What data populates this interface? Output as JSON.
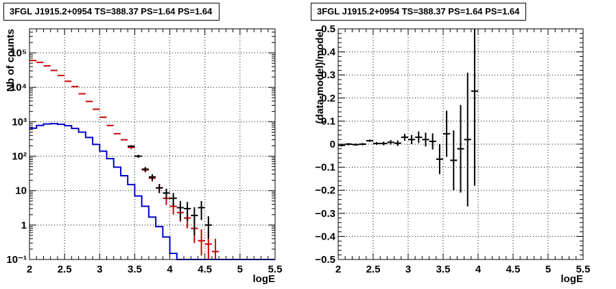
{
  "chart_data": [
    {
      "type": "line",
      "title": "3FGL J1915.2+0954 TS=388.37 PS=1.64 PS=1.64",
      "xlabel": "logE",
      "ylabel": "Nb of counts",
      "xlim": [
        2,
        5.5
      ],
      "ylim": [
        0.1,
        500000
      ],
      "y_scale": "log",
      "grid": true,
      "x_ticks": [
        "2",
        "2.5",
        "3",
        "3.5",
        "4",
        "4.5",
        "5",
        "5.5"
      ],
      "y_ticks": [
        {
          "label": "10⁻¹",
          "value": 0.1
        },
        {
          "label": "1",
          "value": 1
        },
        {
          "label": "10",
          "value": 10
        },
        {
          "label": "10²",
          "value": 100
        },
        {
          "label": "10³",
          "value": 1000
        },
        {
          "label": "10⁴",
          "value": 10000
        },
        {
          "label": "10⁵",
          "value": 100000
        }
      ],
      "bin_width": 0.1,
      "series": [
        {
          "color": "#cc0000",
          "style": "points",
          "x": [
            2.05,
            2.15,
            2.25,
            2.35,
            2.45,
            2.55,
            2.65,
            2.75,
            2.85,
            2.95,
            3.05,
            3.15,
            3.25,
            3.35,
            3.45,
            3.55,
            3.65,
            3.75,
            3.85,
            3.95,
            4.05,
            4.15,
            4.25,
            4.35,
            4.45,
            4.55,
            4.65
          ],
          "y": [
            60000,
            53000,
            42000,
            31000,
            22000,
            15000,
            10500,
            6500,
            3900,
            2300,
            1350,
            780,
            450,
            300,
            180,
            100,
            40,
            23,
            12,
            6,
            3.5,
            2.3,
            1.6,
            0.8,
            0.35,
            0.28,
            0.17
          ],
          "y_err_low": [
            0,
            0,
            0,
            0,
            0,
            0,
            0,
            0,
            0,
            0,
            0,
            0,
            0,
            0,
            20,
            10,
            6,
            4.5,
            3.5,
            2.2,
            1.5,
            1.05,
            0.8,
            0.5,
            0.22,
            0.18,
            0.07
          ],
          "y_err_high": [
            0,
            0,
            0,
            0,
            0,
            0,
            0,
            0,
            0,
            0,
            0,
            0,
            0,
            0,
            20,
            10,
            6,
            4.5,
            3.5,
            2.8,
            2.2,
            1.5,
            1.2,
            0.8,
            0.4,
            0.45,
            0.23
          ]
        },
        {
          "color": "#0000cc",
          "style": "step",
          "bin_low": [
            2.0,
            2.1,
            2.2,
            2.3,
            2.4,
            2.5,
            2.6,
            2.7,
            2.8,
            2.9,
            3.0,
            3.1,
            3.2,
            3.3,
            3.4,
            3.5,
            3.6,
            3.7,
            3.8,
            3.9,
            4.0,
            4.1,
            4.2,
            4.3,
            4.4,
            4.5,
            4.6,
            4.7,
            4.8,
            4.9,
            5.0,
            5.1,
            5.2,
            5.3,
            5.4
          ],
          "values": [
            650,
            780,
            860,
            880,
            840,
            770,
            640,
            500,
            350,
            220,
            140,
            85,
            48,
            27,
            15,
            7,
            3.5,
            1.7,
            0.9,
            0.45,
            0.15,
            0.1,
            0.1,
            0.1,
            0.1,
            0.1,
            0.1,
            0.1,
            0.1,
            0.1,
            0.1,
            0.1,
            0.1,
            0.1,
            0.1
          ]
        },
        {
          "color": "#000000",
          "style": "points",
          "x": [
            3.45,
            3.55,
            3.65,
            3.75,
            3.85,
            3.95,
            4.05,
            4.15,
            4.25,
            4.35,
            4.45,
            4.55
          ],
          "y": [
            195,
            100,
            42,
            25,
            12,
            8.5,
            6,
            3.2,
            3,
            1.9,
            3.2,
            1
          ],
          "y_err_low": [
            14,
            10,
            6.5,
            5,
            3.5,
            2.9,
            2.5,
            1.8,
            1.7,
            1.4,
            1.8,
            0.6
          ],
          "y_err_high": [
            14,
            10,
            6.5,
            5,
            3.5,
            2.9,
            2.5,
            1.8,
            1.7,
            1.4,
            1.8,
            0.8
          ]
        }
      ]
    },
    {
      "type": "scatter",
      "title": "3FGL J1915.2+0954 TS=388.37 PS=1.64 PS=1.64",
      "xlabel": "logE",
      "ylabel": "(data-model)/model",
      "xlim": [
        2,
        5.5
      ],
      "ylim": [
        -0.5,
        0.5
      ],
      "grid": true,
      "x_ticks": [
        "2",
        "2.5",
        "3",
        "3.5",
        "4",
        "4.5",
        "5",
        "5.5"
      ],
      "y_ticks": [
        {
          "label": "−0.5",
          "value": -0.5
        },
        {
          "label": "−0.4",
          "value": -0.4
        },
        {
          "label": "−0.3",
          "value": -0.3
        },
        {
          "label": "−0.2",
          "value": -0.2
        },
        {
          "label": "−0.1",
          "value": -0.1
        },
        {
          "label": "0",
          "value": 0
        },
        {
          "label": "0.1",
          "value": 0.1
        },
        {
          "label": "0.2",
          "value": 0.2
        },
        {
          "label": "0.3",
          "value": 0.3
        },
        {
          "label": "0.4",
          "value": 0.4
        },
        {
          "label": "0.5",
          "value": 0.5
        }
      ],
      "bin_width": 0.1,
      "series": [
        {
          "color": "#000000",
          "x": [
            2.05,
            2.15,
            2.25,
            2.35,
            2.45,
            2.55,
            2.65,
            2.75,
            2.85,
            2.95,
            3.05,
            3.15,
            3.25,
            3.35,
            3.45,
            3.55,
            3.65,
            3.75,
            3.85,
            3.95
          ],
          "y": [
            -0.005,
            0.0,
            -0.002,
            0.0,
            0.015,
            0.003,
            0.003,
            0.008,
            0.004,
            0.03,
            0.02,
            0.03,
            0.02,
            0.012,
            -0.065,
            0.045,
            -0.07,
            -0.02,
            0.02,
            0.23
          ],
          "y_err": [
            0.005,
            0.005,
            0.005,
            0.005,
            0.005,
            0.006,
            0.008,
            0.01,
            0.012,
            0.015,
            0.02,
            0.025,
            0.03,
            0.035,
            0.065,
            0.1,
            0.13,
            0.19,
            0.29,
            0.41
          ]
        }
      ]
    }
  ]
}
